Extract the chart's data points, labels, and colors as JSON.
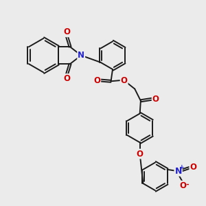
{
  "background_color": "#ebebeb",
  "bond_color": "#1a1a1a",
  "bond_width": 1.4,
  "N_color": "#2222cc",
  "O_color": "#cc0000",
  "font_size_atom": 8.5,
  "fig_width": 3.0,
  "fig_height": 3.0,
  "dpi": 100,
  "xlim": [
    0,
    12
  ],
  "ylim": [
    0,
    12
  ]
}
